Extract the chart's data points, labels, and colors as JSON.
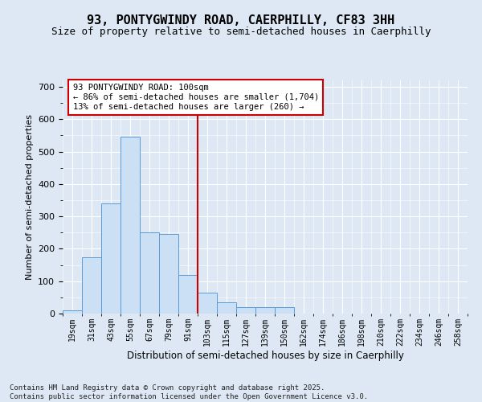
{
  "title": "93, PONTYGWINDY ROAD, CAERPHILLY, CF83 3HH",
  "subtitle": "Size of property relative to semi-detached houses in Caerphilly",
  "xlabel": "Distribution of semi-detached houses by size in Caerphilly",
  "ylabel": "Number of semi-detached properties",
  "footnote": "Contains HM Land Registry data © Crown copyright and database right 2025.\nContains public sector information licensed under the Open Government Licence v3.0.",
  "bin_labels": [
    "19sqm",
    "31sqm",
    "43sqm",
    "55sqm",
    "67sqm",
    "79sqm",
    "91sqm",
    "103sqm",
    "115sqm",
    "127sqm",
    "139sqm",
    "150sqm",
    "162sqm",
    "174sqm",
    "186sqm",
    "198sqm",
    "210sqm",
    "222sqm",
    "234sqm",
    "246sqm",
    "258sqm"
  ],
  "bar_heights": [
    10,
    175,
    340,
    545,
    250,
    245,
    120,
    65,
    35,
    20,
    20,
    20,
    0,
    0,
    0,
    0,
    0,
    0,
    0,
    0,
    0
  ],
  "bar_color": "#cce0f5",
  "bar_edgecolor": "#5b9bd5",
  "vline_color": "#cc0000",
  "annotation_text": "93 PONTYGWINDY ROAD: 100sqm\n← 86% of semi-detached houses are smaller (1,704)\n13% of semi-detached houses are larger (260) →",
  "annotation_box_facecolor": "#ffffff",
  "annotation_box_edgecolor": "#cc0000",
  "ylim": [
    0,
    720
  ],
  "yticks": [
    0,
    100,
    200,
    300,
    400,
    500,
    600,
    700
  ],
  "background_color": "#dde8f4",
  "plot_background": "#dde8f4",
  "title_fontsize": 11,
  "subtitle_fontsize": 9,
  "footnote_fontsize": 6.5
}
